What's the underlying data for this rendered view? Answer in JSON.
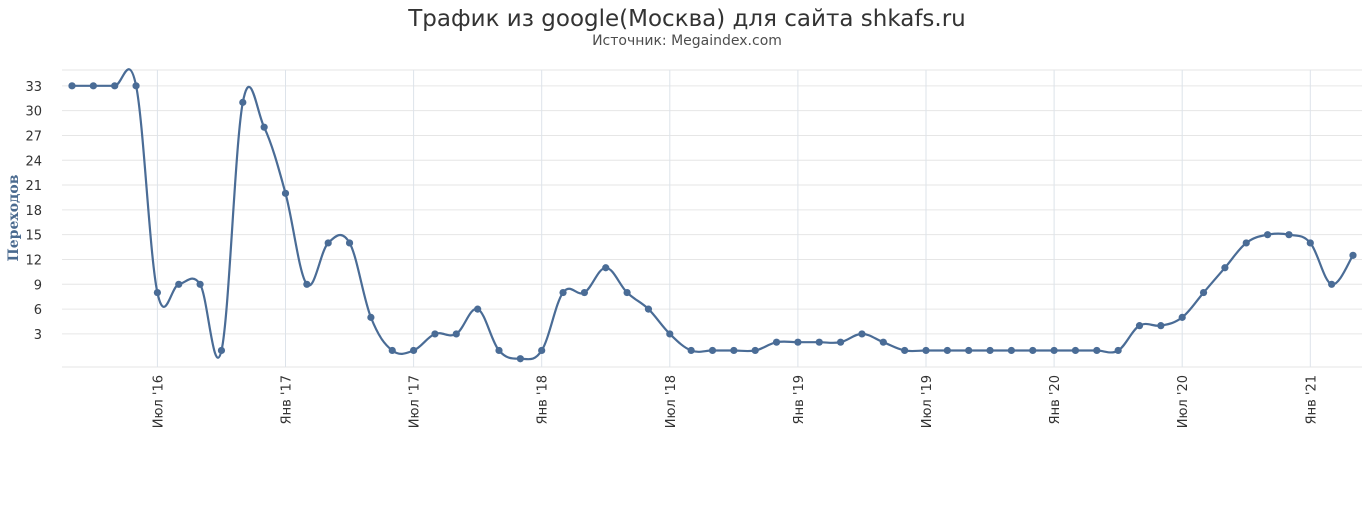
{
  "chart_data": {
    "type": "line",
    "title": "Трафик из google(Москва) для сайта shkafs.ru",
    "subtitle": "Источник: Megaindex.com",
    "ylabel": "Переходов",
    "xlabel": "",
    "ylim": [
      -1,
      35
    ],
    "yticks": [
      3,
      6,
      9,
      12,
      15,
      18,
      21,
      24,
      27,
      30,
      33
    ],
    "grid": true,
    "legend": "none",
    "xtick_labels": [
      "Июл '16",
      "Янв '17",
      "Июл '17",
      "Янв '18",
      "Июл '18",
      "Янв '19",
      "Июл '19",
      "Янв '20",
      "Июл '20",
      "Янв '21"
    ],
    "x": [
      "2016-03",
      "2016-04",
      "2016-05",
      "2016-06",
      "2016-07",
      "2016-08",
      "2016-09",
      "2016-10",
      "2016-11",
      "2016-12",
      "2017-01",
      "2017-02",
      "2017-03",
      "2017-04",
      "2017-05",
      "2017-06",
      "2017-07",
      "2017-08",
      "2017-09",
      "2017-10",
      "2017-11",
      "2017-12",
      "2018-01",
      "2018-02",
      "2018-03",
      "2018-04",
      "2018-05",
      "2018-06",
      "2018-07",
      "2018-08",
      "2018-09",
      "2018-10",
      "2018-11",
      "2018-12",
      "2019-01",
      "2019-02",
      "2019-03",
      "2019-04",
      "2019-05",
      "2019-06",
      "2019-07",
      "2019-08",
      "2019-09",
      "2019-10",
      "2019-11",
      "2019-12",
      "2020-01",
      "2020-02",
      "2020-03",
      "2020-04",
      "2020-05",
      "2020-06",
      "2020-07",
      "2020-08",
      "2020-09",
      "2020-10",
      "2020-11",
      "2020-12",
      "2021-01",
      "2021-02",
      "2021-03"
    ],
    "series": [
      {
        "name": "",
        "color": "#4a6c96",
        "values": [
          33,
          33,
          33,
          33,
          8,
          9,
          9,
          1,
          31,
          28,
          20,
          9,
          14,
          14,
          5,
          1,
          1,
          3,
          3,
          6,
          1,
          0,
          1,
          8,
          8,
          11,
          8,
          6,
          3,
          1,
          1,
          1,
          1,
          2,
          2,
          2,
          2,
          3,
          2,
          1,
          1,
          1,
          1,
          1,
          1,
          1,
          1,
          1,
          1,
          1,
          4,
          4,
          5,
          8,
          11,
          14,
          15,
          15,
          14,
          9,
          12.5
        ]
      }
    ]
  }
}
